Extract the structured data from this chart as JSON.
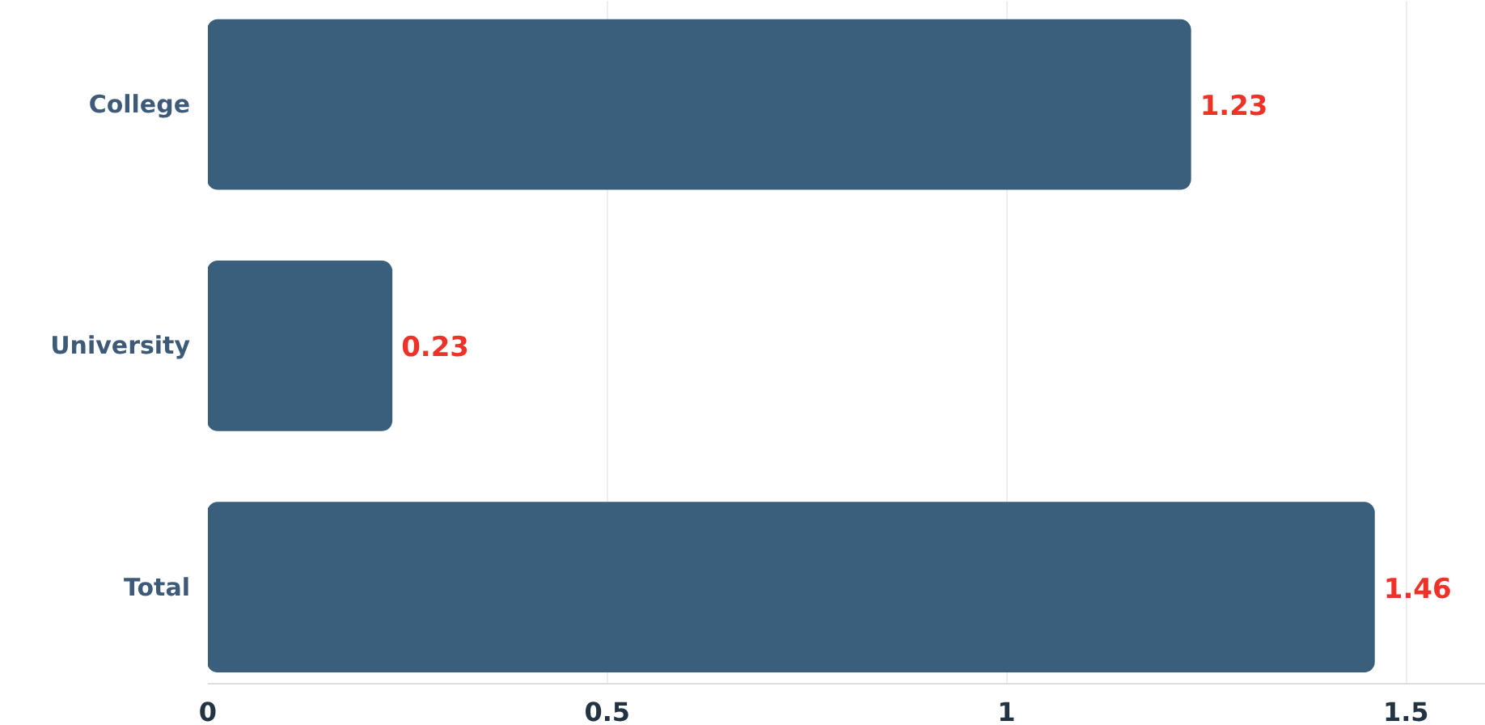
{
  "chart_data": {
    "type": "bar",
    "orientation": "horizontal",
    "categories": [
      "College",
      "University",
      "Total"
    ],
    "values": [
      1.23,
      0.23,
      1.46
    ],
    "color": "#3a5f7d",
    "xlim": [
      0,
      1.6
    ],
    "xticks": [
      0,
      0.5,
      1,
      1.5
    ],
    "grid": "x",
    "data_labels": true
  }
}
